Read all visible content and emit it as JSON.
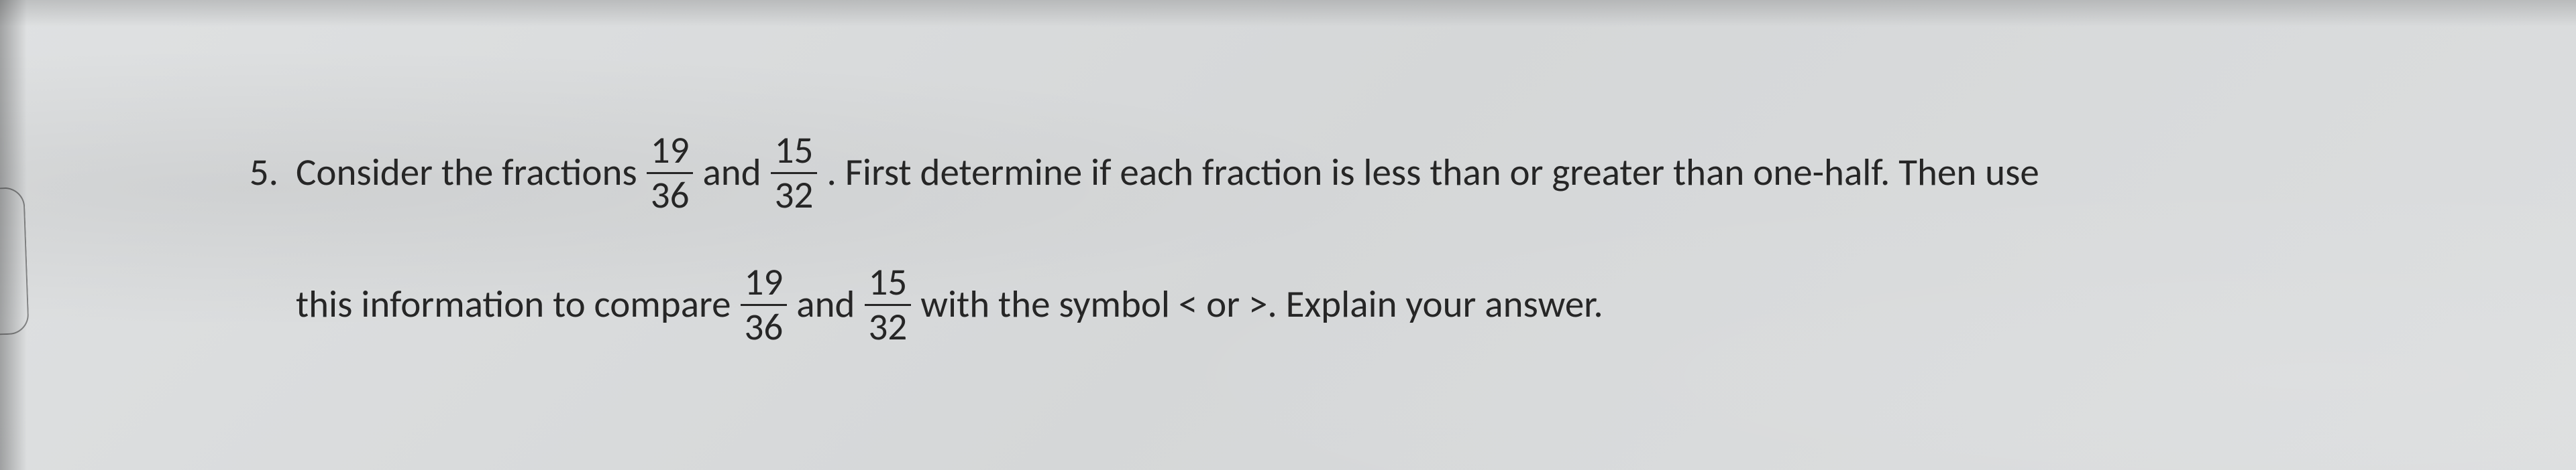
{
  "page": {
    "background_color": "#dcdedf",
    "text_color": "#262626",
    "font_family": "Calibri",
    "font_size_pt": 14
  },
  "problem": {
    "number": "5.",
    "line1": {
      "seg1": "Consider the fractions",
      "frac1": {
        "numerator": "19",
        "denominator": "36"
      },
      "seg2": "and",
      "frac2": {
        "numerator": "15",
        "denominator": "32"
      },
      "seg3": ".   First determine if each fraction is less than or greater than one-half.  Then use"
    },
    "line2": {
      "seg1": "this information to compare",
      "frac1": {
        "numerator": "19",
        "denominator": "36"
      },
      "seg2": "and",
      "frac2": {
        "numerator": "15",
        "denominator": "32"
      },
      "seg3": "with the symbol  <  or  >.  Explain your answer."
    }
  }
}
